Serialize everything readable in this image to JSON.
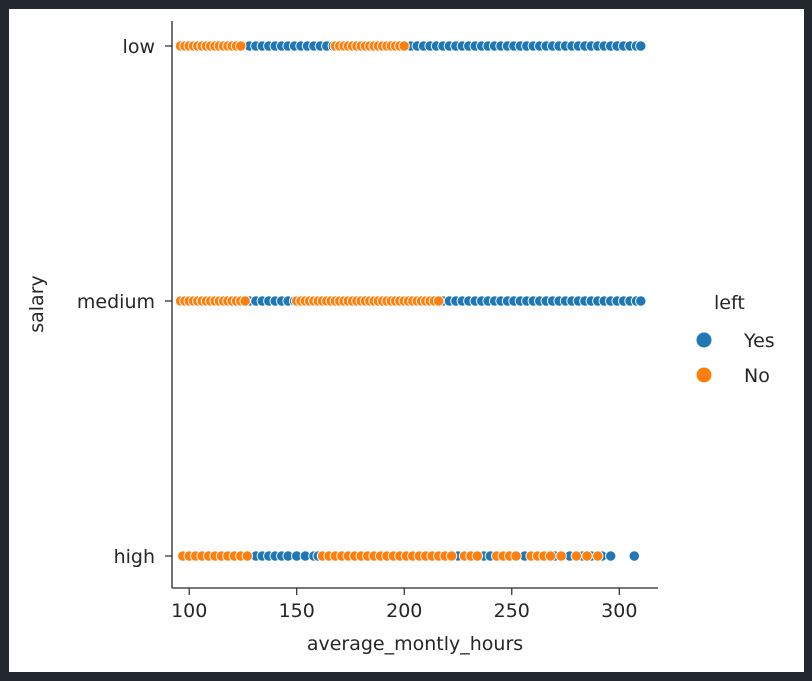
{
  "chart_data": {
    "type": "scatter",
    "xlabel": "average_montly_hours",
    "ylabel": "salary",
    "xlim": [
      92,
      318
    ],
    "x_ticks": [
      "100",
      "150",
      "200",
      "250",
      "300"
    ],
    "y_categories": [
      "low",
      "medium",
      "high"
    ],
    "legend": {
      "title": "left",
      "placement": "right",
      "entries": [
        {
          "label": "Yes",
          "color": "#1f77b4"
        },
        {
          "label": "No",
          "color": "#ff7f0e"
        }
      ]
    },
    "series": [
      {
        "name": "Yes",
        "color": "#1f77b4",
        "points": [
          {
            "category": "low",
            "x": [
              128,
              131,
              134,
              137,
              140,
              143,
              146,
              149,
              152,
              155,
              158,
              161,
              164,
              167,
              170,
              173,
              176,
              179,
              182,
              185,
              188,
              191,
              194,
              197,
              200,
              203,
              206,
              209,
              212,
              215,
              218,
              221,
              224,
              227,
              230,
              233,
              236,
              239,
              242,
              245,
              248,
              251,
              254,
              257,
              260,
              263,
              266,
              269,
              272,
              275,
              278,
              281,
              284,
              287,
              290,
              293,
              296,
              299,
              302,
              305,
              308,
              310
            ]
          },
          {
            "category": "medium",
            "x": [
              125,
              128,
              131,
              134,
              137,
              140,
              143,
              146,
              149,
              152,
              155,
              158,
              161,
              164,
              167,
              170,
              173,
              176,
              179,
              182,
              185,
              188,
              191,
              194,
              197,
              200,
              203,
              206,
              209,
              212,
              215,
              218,
              221,
              224,
              227,
              230,
              233,
              236,
              239,
              242,
              245,
              248,
              251,
              254,
              257,
              260,
              263,
              266,
              269,
              272,
              275,
              278,
              281,
              284,
              287,
              290,
              293,
              296,
              299,
              302,
              305,
              308,
              310
            ]
          },
          {
            "category": "high",
            "x": [
              131,
              134,
              137,
              140,
              143,
              146,
              150,
              154,
              158,
              160,
              162,
              225,
              237,
              240,
              256,
              270,
              277,
              283,
              287,
              292,
              296,
              307
            ]
          }
        ]
      },
      {
        "name": "No",
        "color": "#ff7f0e",
        "points": [
          {
            "category": "low",
            "x": [
              96,
              98,
              100,
              102,
              104,
              106,
              108,
              110,
              112,
              114,
              116,
              118,
              120,
              122,
              124,
              168,
              170,
              172,
              174,
              176,
              178,
              180,
              182,
              184,
              186,
              188,
              190,
              192,
              194,
              196,
              198,
              200
            ]
          },
          {
            "category": "medium",
            "x": [
              96,
              98,
              100,
              102,
              104,
              106,
              108,
              110,
              112,
              114,
              116,
              118,
              120,
              122,
              124,
              126,
              150,
              152,
              154,
              156,
              158,
              160,
              162,
              164,
              166,
              168,
              170,
              172,
              174,
              176,
              178,
              180,
              182,
              184,
              186,
              188,
              190,
              192,
              194,
              196,
              198,
              200,
              202,
              204,
              206,
              208,
              210,
              212,
              214,
              216
            ]
          },
          {
            "category": "high",
            "x": [
              97,
              100,
              103,
              106,
              109,
              112,
              115,
              118,
              121,
              124,
              127,
              162,
              165,
              168,
              171,
              174,
              177,
              180,
              183,
              186,
              189,
              192,
              195,
              198,
              201,
              204,
              207,
              210,
              213,
              216,
              219,
              222,
              228,
              231,
              234,
              243,
              246,
              249,
              252,
              259,
              262,
              265,
              268,
              273,
              280,
              285,
              290
            ]
          }
        ]
      }
    ]
  }
}
